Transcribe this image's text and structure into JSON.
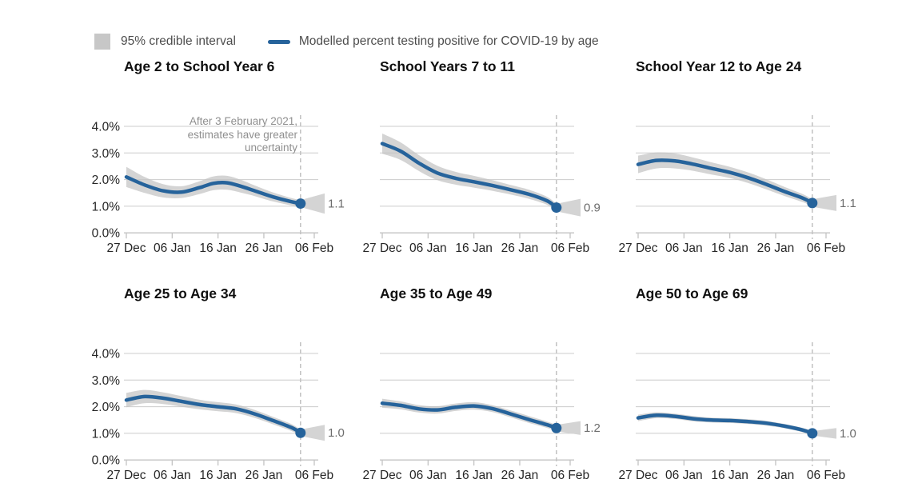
{
  "legend": {
    "band_label": "95% credible interval",
    "series_label": "Modelled percent testing positive for COVID-19 by age"
  },
  "annotation": {
    "text": "After 3 February 2021,\nestimates have greater\nuncertainty"
  },
  "colors": {
    "line": "#26639B",
    "band": "#d4d4d4",
    "legend_swatch": "#c7c7c7",
    "gridline": "#dcdcdc",
    "gridline_overlay": "rgba(140,140,140,0.18)",
    "axis": "#c3c3c3",
    "dashed": "#c4c4c4",
    "end_label": "#6d6d6d",
    "annotation": "#8f8f8f"
  },
  "chart_data": {
    "type": "line",
    "unit": "%",
    "ylim": [
      0,
      4
    ],
    "y_tick_labels": [
      "0.0%",
      "1.0%",
      "2.0%",
      "3.0%",
      "4.0%"
    ],
    "x_tick_labels": [
      "27 Dec",
      "06 Jan",
      "16 Jan",
      "26 Jan",
      "06 Feb"
    ],
    "x_tick_days": [
      0,
      10,
      20,
      30,
      41
    ],
    "x_day_zero_date": "27 Dec",
    "dashed_marker_day": 38,
    "dashed_marker_date": "03 Feb",
    "series_name": "Modelled percent testing positive for COVID-19 by age",
    "band_name": "95% credible interval",
    "grid": true,
    "panels": [
      {
        "title": "Age 2 to School Year 6",
        "end_label": "1.1",
        "show_y_axis_labels": true,
        "x_days": [
          0,
          4,
          8,
          12,
          16,
          19,
          22,
          25,
          28,
          32,
          36,
          38
        ],
        "values": [
          2.1,
          1.8,
          1.58,
          1.53,
          1.7,
          1.86,
          1.88,
          1.75,
          1.58,
          1.35,
          1.17,
          1.1
        ],
        "ci_halfwidth": [
          0.38,
          0.3,
          0.25,
          0.22,
          0.24,
          0.26,
          0.26,
          0.24,
          0.2,
          0.17,
          0.14,
          0.13
        ],
        "fan_end_halfwidth": 0.38
      },
      {
        "title": "School Years 7 to 11",
        "end_label": "0.9",
        "show_y_axis_labels": false,
        "x_days": [
          0,
          4,
          8,
          12,
          16,
          20,
          24,
          28,
          32,
          36,
          38
        ],
        "values": [
          3.35,
          3.07,
          2.62,
          2.25,
          2.05,
          1.92,
          1.78,
          1.62,
          1.45,
          1.2,
          0.95
        ],
        "ci_halfwidth": [
          0.38,
          0.33,
          0.3,
          0.27,
          0.24,
          0.22,
          0.2,
          0.18,
          0.17,
          0.15,
          0.14
        ],
        "fan_end_halfwidth": 0.33
      },
      {
        "title": "School Year 12 to Age 24",
        "end_label": "1.1",
        "show_y_axis_labels": false,
        "x_days": [
          0,
          4,
          8,
          12,
          16,
          20,
          24,
          28,
          32,
          36,
          38
        ],
        "values": [
          2.57,
          2.72,
          2.7,
          2.58,
          2.42,
          2.27,
          2.07,
          1.82,
          1.55,
          1.3,
          1.12
        ],
        "ci_halfwidth": [
          0.33,
          0.3,
          0.28,
          0.25,
          0.23,
          0.21,
          0.2,
          0.19,
          0.17,
          0.15,
          0.14
        ],
        "fan_end_halfwidth": 0.3
      },
      {
        "title": "Age 25 to Age 34",
        "end_label": "1.0",
        "show_y_axis_labels": true,
        "x_days": [
          0,
          4,
          8,
          12,
          16,
          20,
          24,
          28,
          32,
          36,
          38
        ],
        "values": [
          2.25,
          2.38,
          2.32,
          2.2,
          2.08,
          2.0,
          1.92,
          1.73,
          1.48,
          1.22,
          1.02
        ],
        "ci_halfwidth": [
          0.27,
          0.25,
          0.22,
          0.2,
          0.18,
          0.17,
          0.16,
          0.15,
          0.14,
          0.13,
          0.12
        ],
        "fan_end_halfwidth": 0.3
      },
      {
        "title": "Age 35 to Age 49",
        "end_label": "1.2",
        "show_y_axis_labels": false,
        "x_days": [
          0,
          4,
          8,
          12,
          16,
          20,
          24,
          28,
          32,
          36,
          38
        ],
        "values": [
          2.13,
          2.05,
          1.92,
          1.88,
          1.98,
          2.03,
          1.93,
          1.73,
          1.52,
          1.32,
          1.2
        ],
        "ci_halfwidth": [
          0.17,
          0.15,
          0.14,
          0.14,
          0.14,
          0.14,
          0.13,
          0.13,
          0.13,
          0.12,
          0.12
        ],
        "fan_end_halfwidth": 0.26
      },
      {
        "title": "Age 50 to Age 69",
        "end_label": "1.0",
        "show_y_axis_labels": false,
        "x_days": [
          0,
          4,
          8,
          12,
          16,
          20,
          24,
          28,
          32,
          36,
          38
        ],
        "values": [
          1.58,
          1.68,
          1.64,
          1.55,
          1.5,
          1.48,
          1.44,
          1.38,
          1.27,
          1.12,
          1.0
        ],
        "ci_halfwidth": [
          0.12,
          0.11,
          0.1,
          0.1,
          0.09,
          0.09,
          0.09,
          0.09,
          0.08,
          0.08,
          0.08
        ],
        "fan_end_halfwidth": 0.2
      }
    ]
  }
}
